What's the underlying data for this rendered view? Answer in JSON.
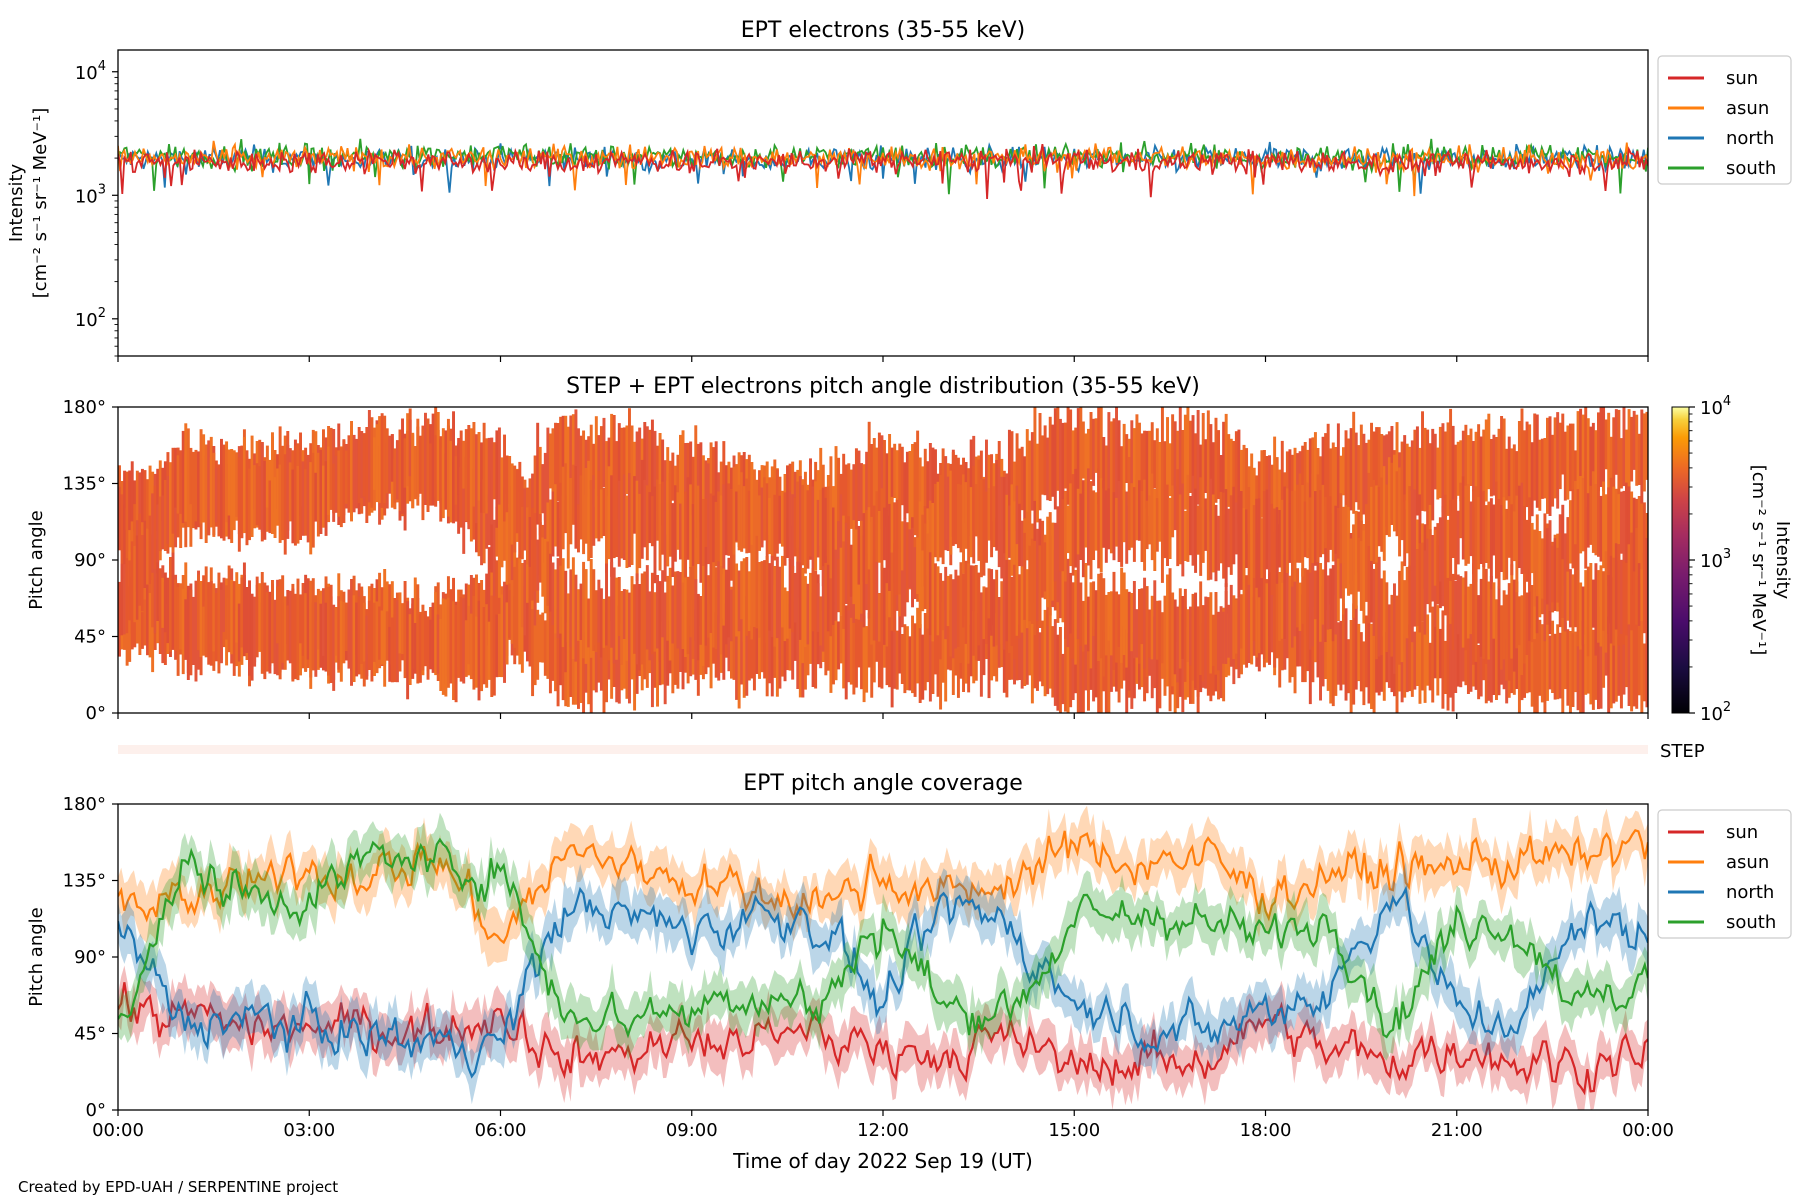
{
  "figure": {
    "xlabel": "Time of day 2022 Sep 19 (UT)",
    "footer": "Created by EPD-UAH / SERPENTINE project",
    "x_ticks": [
      "00:00",
      "03:00",
      "06:00",
      "09:00",
      "12:00",
      "15:00",
      "18:00",
      "21:00",
      "00:00"
    ],
    "x_range_hours": [
      0,
      24
    ]
  },
  "colors": {
    "sun": "#d62728",
    "asun": "#ff7f0e",
    "north": "#1f77b4",
    "south": "#2ca02c",
    "pad_fill": "#e8602a",
    "step_band": "#fdf0ec"
  },
  "chart_data": [
    {
      "type": "line",
      "title": "EPT electrons (35-55 keV)",
      "ylabel_line1": "Intensity",
      "ylabel_line2": "[cm⁻² s⁻¹ sr⁻¹ MeV⁻¹]",
      "yscale": "log",
      "ylim": [
        50,
        15000
      ],
      "y_ticks": [
        {
          "value": 100,
          "base": "10",
          "exp": "2"
        },
        {
          "value": 1000,
          "base": "10",
          "exp": "3"
        },
        {
          "value": 10000,
          "base": "10",
          "exp": "4"
        }
      ],
      "x": [
        0,
        2,
        4,
        6,
        8,
        10,
        12,
        14,
        16,
        18,
        20,
        22,
        24
      ],
      "series": [
        {
          "name": "sun",
          "values": [
            1900,
            1850,
            1950,
            1800,
            1900,
            1850,
            1900,
            1950,
            1850,
            1900,
            1800,
            1850,
            1900
          ]
        },
        {
          "name": "asun",
          "values": [
            2000,
            1950,
            2050,
            2000,
            2050,
            2000,
            1950,
            2000,
            2050,
            1950,
            2000,
            1950,
            2000
          ]
        },
        {
          "name": "north",
          "values": [
            1950,
            2000,
            1900,
            2000,
            1950,
            1900,
            2000,
            1950,
            1900,
            2000,
            1950,
            2000,
            1950
          ]
        },
        {
          "name": "south",
          "values": [
            2100,
            2050,
            2100,
            2150,
            2000,
            2050,
            2100,
            2050,
            2100,
            2000,
            2050,
            2100,
            2050
          ]
        }
      ],
      "legend": [
        "sun",
        "asun",
        "north",
        "south"
      ],
      "legend_placement": "outside right, top"
    },
    {
      "type": "heatmap",
      "title": "STEP + EPT electrons pitch angle distribution (35-55 keV)",
      "ylabel": "Pitch angle",
      "ylim": [
        0,
        180
      ],
      "y_ticks": [
        "0°",
        "45°",
        "90°",
        "135°",
        "180°"
      ],
      "colorbar": {
        "scale": "log",
        "range": [
          100,
          10000
        ],
        "ticks": [
          {
            "value": 100,
            "base": "10",
            "exp": "2"
          },
          {
            "value": 1000,
            "base": "10",
            "exp": "3"
          },
          {
            "value": 10000,
            "base": "10",
            "exp": "4"
          }
        ],
        "label_line1": "Intensity",
        "label_line2": "[cm⁻² s⁻¹ sr⁻¹ MeV⁻¹]",
        "colormap": "inferno"
      },
      "typical_intensity": 1800,
      "step_label": "STEP"
    },
    {
      "type": "line",
      "title": "EPT pitch angle coverage",
      "ylabel": "Pitch angle",
      "ylim": [
        0,
        180
      ],
      "y_ticks": [
        "0°",
        "45°",
        "90°",
        "135°",
        "180°"
      ],
      "x": [
        0,
        1,
        2,
        3,
        4,
        5,
        6,
        7,
        8,
        9,
        10,
        11,
        12,
        13,
        14,
        15,
        16,
        17,
        18,
        19,
        20,
        21,
        22,
        23,
        24
      ],
      "series": [
        {
          "name": "sun",
          "values": [
            60,
            55,
            52,
            48,
            50,
            45,
            60,
            30,
            35,
            40,
            40,
            45,
            35,
            35,
            40,
            25,
            30,
            28,
            55,
            35,
            30,
            35,
            30,
            28,
            30
          ]
        },
        {
          "name": "asun",
          "values": [
            120,
            125,
            130,
            140,
            140,
            150,
            100,
            150,
            145,
            135,
            125,
            120,
            140,
            125,
            135,
            155,
            145,
            150,
            125,
            140,
            140,
            145,
            145,
            150,
            155
          ]
        },
        {
          "name": "north",
          "values": [
            110,
            50,
            55,
            50,
            45,
            40,
            40,
            120,
            115,
            105,
            115,
            110,
            60,
            120,
            110,
            60,
            50,
            45,
            60,
            70,
            130,
            60,
            50,
            115,
            100
          ]
        },
        {
          "name": "south",
          "values": [
            55,
            140,
            130,
            125,
            150,
            145,
            140,
            60,
            55,
            60,
            70,
            60,
            110,
            60,
            60,
            110,
            115,
            110,
            100,
            115,
            50,
            110,
            105,
            60,
            75
          ]
        }
      ],
      "legend": [
        "sun",
        "asun",
        "north",
        "south"
      ],
      "legend_placement": "outside right, top"
    }
  ]
}
